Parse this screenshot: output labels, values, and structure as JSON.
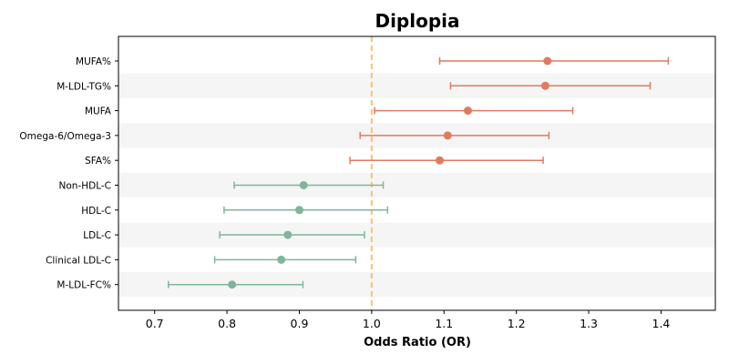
{
  "chart_data": {
    "type": "forest",
    "title": "Diplopia",
    "xlabel": "Odds Ratio (OR)",
    "ylabel": "",
    "xlim": [
      0.65,
      1.475
    ],
    "xticks": [
      "0.7",
      "0.8",
      "0.9",
      "1.0",
      "1.1",
      "1.2",
      "1.3",
      "1.4"
    ],
    "reference_line": 1.0,
    "reference_color": "#f5c77e",
    "colors": {
      "positive": "#e07b5f",
      "negative": "#7fb69a",
      "band": "#f5f5f5"
    },
    "rows": [
      {
        "label": "MUFA%",
        "or": 1.243,
        "lo": 1.094,
        "hi": 1.41
      },
      {
        "label": "M-LDL-TG%",
        "or": 1.24,
        "lo": 1.109,
        "hi": 1.385
      },
      {
        "label": "MUFA",
        "or": 1.133,
        "lo": 1.004,
        "hi": 1.278
      },
      {
        "label": "Omega-6/Omega-3",
        "or": 1.105,
        "lo": 0.984,
        "hi": 1.245
      },
      {
        "label": "SFA%",
        "or": 1.094,
        "lo": 0.97,
        "hi": 1.237
      },
      {
        "label": "Non-HDL-C",
        "or": 0.906,
        "lo": 0.81,
        "hi": 1.016
      },
      {
        "label": "HDL-C",
        "or": 0.9,
        "lo": 0.796,
        "hi": 1.022
      },
      {
        "label": "LDL-C",
        "or": 0.884,
        "lo": 0.79,
        "hi": 0.99
      },
      {
        "label": "Clinical LDL-C",
        "or": 0.875,
        "lo": 0.783,
        "hi": 0.978
      },
      {
        "label": "M-LDL-FC%",
        "or": 0.807,
        "lo": 0.719,
        "hi": 0.905
      }
    ]
  }
}
